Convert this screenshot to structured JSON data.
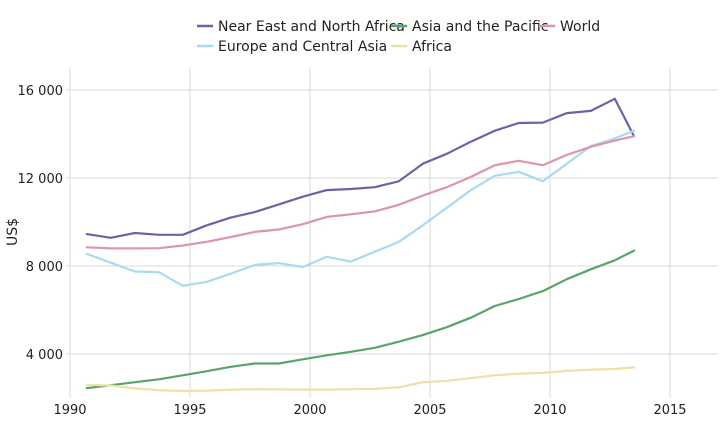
{
  "chart_data": {
    "type": "line",
    "title": "",
    "xlabel": "",
    "ylabel": "US$",
    "xlim": [
      1990,
      2017
    ],
    "ylim": [
      2000,
      17000
    ],
    "xticks": [
      1990,
      1995,
      2000,
      2005,
      2010,
      2015
    ],
    "xtick_labels": [
      "1990",
      "1995",
      "2000",
      "2005",
      "2010",
      "2015"
    ],
    "yticks": [
      4000,
      8000,
      12000,
      16000
    ],
    "ytick_labels": [
      "4 000",
      "8 000",
      "12 000",
      "16 000"
    ],
    "grid": true,
    "legend_position": "top-center",
    "x": [
      1990.7,
      1991.7,
      1992.7,
      1993.7,
      1994.7,
      1995.7,
      1996.7,
      1997.7,
      1998.7,
      1999.7,
      2000.7,
      2001.7,
      2002.7,
      2003.7,
      2004.7,
      2005.7,
      2006.7,
      2007.7,
      2008.7,
      2009.7,
      2010.7,
      2011.7,
      2012.7,
      2013.5
    ],
    "series": [
      {
        "name": "Near East and North Africa",
        "color": "#6b63a6",
        "values": [
          9450,
          9280,
          9500,
          9420,
          9420,
          9850,
          10200,
          10450,
          10800,
          11150,
          11450,
          11500,
          11580,
          11850,
          12650,
          13100,
          13650,
          14150,
          14500,
          14520,
          14950,
          15050,
          15600,
          13900
        ]
      },
      {
        "name": "Europe and Central Asia",
        "color": "#a8daf0",
        "values": [
          8550,
          8150,
          7750,
          7720,
          7100,
          7280,
          7650,
          8050,
          8130,
          7950,
          8420,
          8200,
          8650,
          9100,
          9850,
          10650,
          11450,
          12100,
          12280,
          11850,
          12650,
          13450,
          13800,
          14150
        ]
      },
      {
        "name": "Asia and the Pacific",
        "color": "#5aa36a",
        "values": [
          2450,
          2580,
          2720,
          2850,
          3030,
          3220,
          3420,
          3570,
          3570,
          3760,
          3940,
          4100,
          4280,
          4560,
          4860,
          5220,
          5650,
          6180,
          6500,
          6860,
          7400,
          7850,
          8260,
          8700
        ]
      },
      {
        "name": "Africa",
        "color": "#ede0a8",
        "values": [
          2600,
          2570,
          2430,
          2360,
          2320,
          2330,
          2380,
          2400,
          2390,
          2380,
          2380,
          2400,
          2420,
          2480,
          2720,
          2780,
          2900,
          3030,
          3110,
          3140,
          3230,
          3290,
          3320,
          3390
        ]
      },
      {
        "name": "World",
        "color": "#dc96a8",
        "values": [
          8850,
          8800,
          8800,
          8810,
          8930,
          9100,
          9320,
          9550,
          9660,
          9900,
          10230,
          10350,
          10480,
          10780,
          11200,
          11580,
          12050,
          12580,
          12780,
          12580,
          13050,
          13420,
          13700,
          13900
        ]
      }
    ]
  }
}
